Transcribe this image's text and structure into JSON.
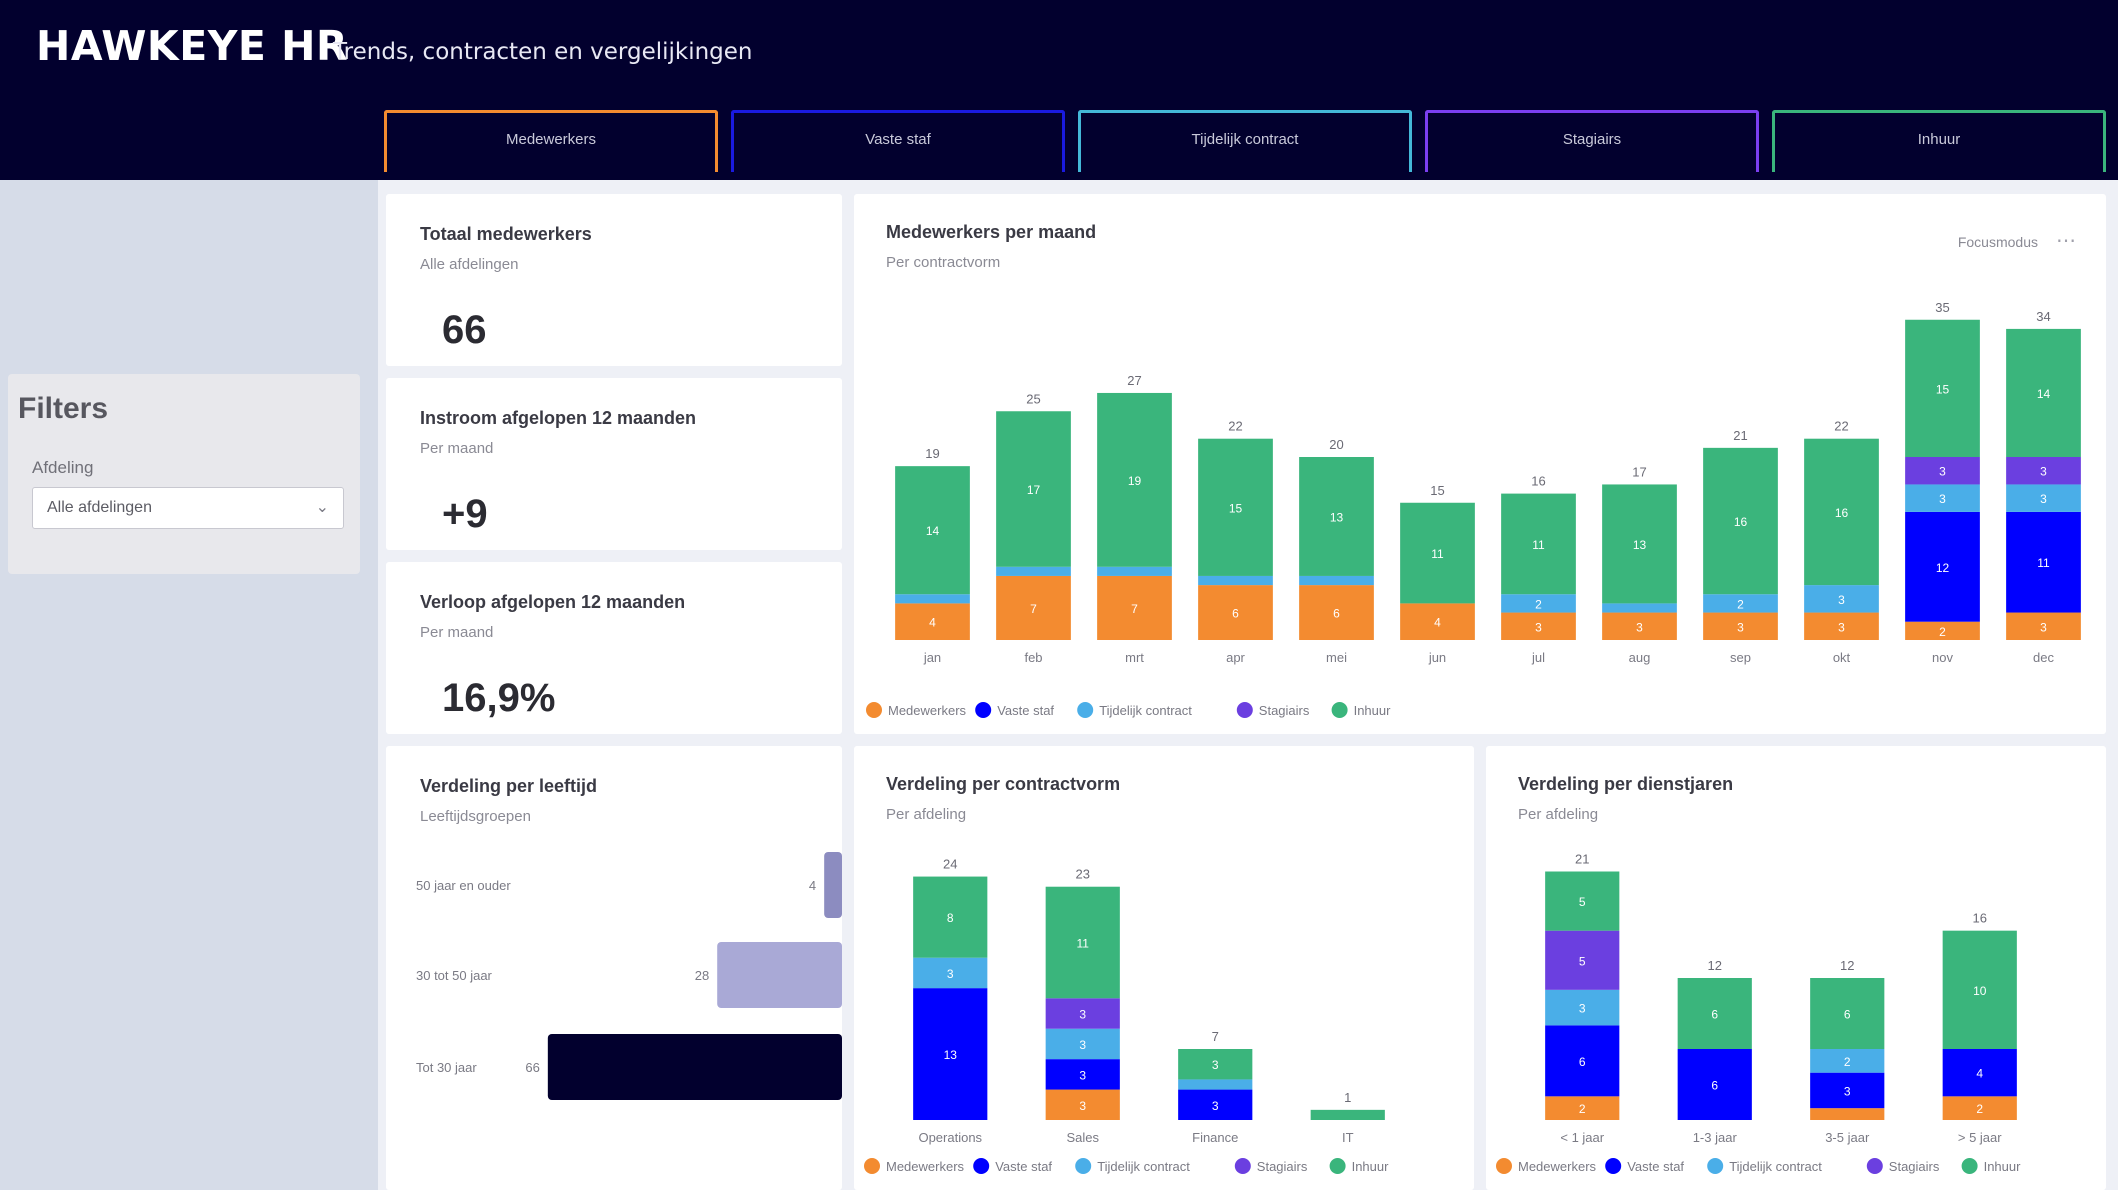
{
  "header": {
    "brand": "HAWKEYE  HR",
    "subtitle": "Trends, contracten en vergelijkingen",
    "background": "#02002e"
  },
  "tabs": [
    {
      "label": "Medewerkers",
      "color": "#f38b30"
    },
    {
      "label": "Vaste staf",
      "color": "#1a1adf"
    },
    {
      "label": "Tijdelijk contract",
      "color": "#44b8d8"
    },
    {
      "label": "Stagiairs",
      "color": "#7b3ff0"
    },
    {
      "label": "Inhuur",
      "color": "#3ab57c"
    }
  ],
  "sidebar": {
    "filters_title": "Filters",
    "filter_label": "Afdeling",
    "filter_value": "Alle afdelingen"
  },
  "kpis": [
    {
      "title": "Totaal medewerkers",
      "sub": "Alle afdelingen",
      "value": "66"
    },
    {
      "title": "Instroom afgelopen 12 maanden",
      "sub": "Per maand",
      "value": "+9"
    },
    {
      "title": "Verloop afgelopen 12 maanden",
      "sub": "Per maand",
      "value": "16,9%"
    }
  ],
  "colors": {
    "orange": "#f38b30",
    "blue": "#0000ff",
    "lightblue": "#4aaee8",
    "purple": "#6b3fe0",
    "green": "#3ab57c",
    "navy": "#02002e"
  },
  "main_chart": {
    "title": "Medewerkers per maand",
    "sub": "Per contractvorm",
    "focus_label": "Focusmodus",
    "more_icon": "ellipsis-icon"
  },
  "bottom_left": {
    "title": "Verdeling per leeftijd",
    "sub": "Leeftijdsgroepen"
  },
  "bottom_chart1": {
    "title": "Verdeling per contractvorm",
    "sub": "Per afdeling"
  },
  "bottom_chart2": {
    "title": "Verdeling per dienstjaren",
    "sub": "Per afdeling"
  },
  "chart_data": [
    {
      "type": "bar",
      "stacked": true,
      "categories": [
        "jan",
        "feb",
        "mrt",
        "apr",
        "mei",
        "jun",
        "jul",
        "aug",
        "sep",
        "okt",
        "nov",
        "dec"
      ],
      "series": [
        {
          "name": "Medewerkers",
          "color": "#f38b30",
          "values": [
            4,
            7,
            7,
            6,
            6,
            4,
            3,
            3,
            3,
            3,
            2,
            3
          ]
        },
        {
          "name": "Vaste staf",
          "color": "#0000ff",
          "values": [
            0,
            0,
            0,
            0,
            0,
            0,
            0,
            0,
            0,
            0,
            12,
            11
          ]
        },
        {
          "name": "Tijdelijk contract",
          "color": "#4aaee8",
          "values": [
            1,
            1,
            1,
            1,
            1,
            0,
            2,
            1,
            2,
            3,
            3,
            3
          ]
        },
        {
          "name": "Stagiairs",
          "color": "#6b3fe0",
          "values": [
            0,
            0,
            0,
            0,
            0,
            0,
            0,
            0,
            0,
            0,
            3,
            3
          ]
        },
        {
          "name": "Inhuur",
          "color": "#3ab57c",
          "values": [
            14,
            17,
            19,
            15,
            13,
            11,
            11,
            13,
            16,
            16,
            15,
            14
          ]
        }
      ],
      "totals": [
        19,
        25,
        27,
        22,
        20,
        15,
        16,
        17,
        21,
        22,
        35,
        34
      ],
      "ylim": [
        0,
        40
      ],
      "legend": "bottom-left"
    },
    {
      "type": "bar",
      "orientation": "horizontal",
      "categories": [
        "50 jaar en ouder",
        "30 tot 50 jaar",
        "Tot 30 jaar"
      ],
      "values": [
        4,
        28,
        66
      ],
      "colors": [
        "#8c8cc0",
        "#a9a9d6",
        "#02002e"
      ],
      "xlim": [
        0,
        70
      ]
    },
    {
      "type": "bar",
      "stacked": true,
      "categories": [
        "Operations",
        "Sales",
        "Finance",
        "IT"
      ],
      "series": [
        {
          "name": "Medewerkers",
          "color": "#f38b30",
          "values": [
            0,
            3,
            0,
            0
          ]
        },
        {
          "name": "Vaste staf",
          "color": "#0000ff",
          "values": [
            13,
            3,
            3,
            0
          ]
        },
        {
          "name": "Tijdelijk contract",
          "color": "#4aaee8",
          "values": [
            3,
            3,
            1,
            0
          ]
        },
        {
          "name": "Stagiairs",
          "color": "#6b3fe0",
          "values": [
            0,
            3,
            0,
            0
          ]
        },
        {
          "name": "Inhuur",
          "color": "#3ab57c",
          "values": [
            8,
            11,
            3,
            1
          ]
        }
      ],
      "totals": [
        24,
        23,
        7,
        1
      ],
      "ylim": [
        0,
        28
      ]
    },
    {
      "type": "bar",
      "stacked": true,
      "categories": [
        "< 1 jaar",
        "1-3 jaar",
        "3-5 jaar",
        "> 5 jaar"
      ],
      "series": [
        {
          "name": "Medewerkers",
          "color": "#f38b30",
          "values": [
            2,
            0,
            1,
            2
          ]
        },
        {
          "name": "Vaste staf",
          "color": "#0000ff",
          "values": [
            6,
            6,
            3,
            4
          ]
        },
        {
          "name": "Tijdelijk contract",
          "color": "#4aaee8",
          "values": [
            3,
            0,
            2,
            0
          ]
        },
        {
          "name": "Stagiairs",
          "color": "#6b3fe0",
          "values": [
            5,
            0,
            0,
            0
          ]
        },
        {
          "name": "Inhuur",
          "color": "#3ab57c",
          "values": [
            5,
            6,
            6,
            10
          ]
        }
      ],
      "totals": [
        21,
        12,
        12,
        16
      ],
      "ylim": [
        0,
        24
      ]
    }
  ]
}
